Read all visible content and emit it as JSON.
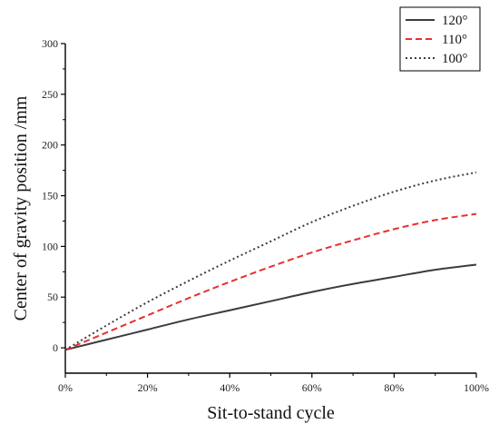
{
  "chart_data": {
    "type": "line",
    "title": "",
    "xlabel": "Sit-to-stand cycle",
    "ylabel": "Center of gravity position /mm",
    "xlim": [
      0,
      100
    ],
    "ylim": [
      -25,
      300
    ],
    "x_ticks": [
      0,
      20,
      40,
      60,
      80,
      100
    ],
    "x_tick_labels": [
      "0%",
      "20%",
      "40%",
      "60%",
      "80%",
      "100%"
    ],
    "y_ticks": [
      0,
      50,
      100,
      150,
      200,
      250,
      300
    ],
    "y_tick_labels": [
      "0",
      "50",
      "100",
      "150",
      "200",
      "250",
      "300"
    ],
    "grid": false,
    "legend_position": "top-right",
    "x": [
      0,
      10,
      20,
      30,
      40,
      50,
      60,
      70,
      80,
      90,
      100
    ],
    "series": [
      {
        "name": "120°",
        "color": "#3c3c3c",
        "style": "solid",
        "values": [
          -2,
          8,
          18,
          28,
          37,
          46,
          55,
          63,
          70,
          77,
          82
        ]
      },
      {
        "name": "110°",
        "color": "#e8302f",
        "style": "dashed",
        "values": [
          -2,
          15,
          32,
          49,
          65,
          80,
          94,
          106,
          117,
          126,
          132
        ]
      },
      {
        "name": "100°",
        "color": "#3c3c3c",
        "style": "dotted",
        "values": [
          -2,
          22,
          45,
          66,
          86,
          105,
          124,
          140,
          154,
          165,
          173
        ]
      }
    ]
  }
}
